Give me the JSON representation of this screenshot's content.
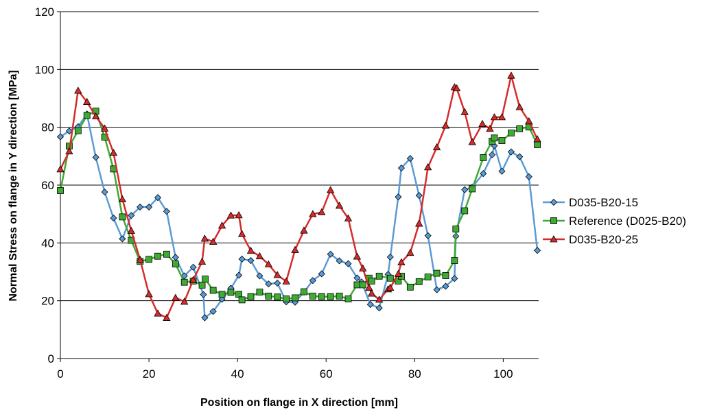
{
  "chart_data": {
    "type": "line",
    "title": "",
    "xlabel": "Position on flange in X direction [mm]",
    "ylabel": "Normal Stress on flange in Y direction [MPa]",
    "xlim": [
      0,
      108
    ],
    "ylim": [
      0,
      120
    ],
    "x_ticks": [
      0,
      20,
      40,
      60,
      80,
      100
    ],
    "y_ticks": [
      0,
      20,
      40,
      60,
      80,
      100,
      120
    ],
    "grid": "horizontal major",
    "legend_position": "right",
    "series": [
      {
        "name": "D035-B20-15",
        "color": "#5b9bd5",
        "marker": "diamond",
        "points": [
          [
            0,
            76.7
          ],
          [
            2,
            78.7
          ],
          [
            4,
            80.2
          ],
          [
            6,
            84.6
          ],
          [
            8,
            69.6
          ],
          [
            10,
            57.6
          ],
          [
            12,
            48.6
          ],
          [
            14,
            41.4
          ],
          [
            16,
            49.5
          ],
          [
            18,
            52.4
          ],
          [
            20,
            52.4
          ],
          [
            22,
            55.7
          ],
          [
            24,
            50.9
          ],
          [
            26,
            35
          ],
          [
            28,
            28.6
          ],
          [
            30,
            31.6
          ],
          [
            32.3,
            22.1
          ],
          [
            32.6,
            14.1
          ],
          [
            34.5,
            16.3
          ],
          [
            36.5,
            20.5
          ],
          [
            38.5,
            24.3
          ],
          [
            40.3,
            28.8
          ],
          [
            41,
            34.4
          ],
          [
            43,
            33.9
          ],
          [
            45,
            28.6
          ],
          [
            47,
            25.8
          ],
          [
            49,
            26.1
          ],
          [
            51,
            19.6
          ],
          [
            53,
            19.5
          ],
          [
            55,
            23
          ],
          [
            57,
            27
          ],
          [
            59,
            29.3
          ],
          [
            61,
            36.1
          ],
          [
            63,
            33.8
          ],
          [
            65,
            32.8
          ],
          [
            67,
            27.9
          ],
          [
            68,
            26.5
          ],
          [
            70,
            18.7
          ],
          [
            72,
            17.5
          ],
          [
            74,
            29.1
          ],
          [
            74.5,
            35.1
          ],
          [
            76.3,
            55.9
          ],
          [
            77,
            65.9
          ],
          [
            79,
            69.2
          ],
          [
            81,
            56.4
          ],
          [
            83,
            42.5
          ],
          [
            85,
            23.8
          ],
          [
            87,
            25
          ],
          [
            89,
            27.7
          ],
          [
            89.3,
            42.3
          ],
          [
            91.3,
            58.4
          ],
          [
            93,
            59.3
          ],
          [
            95.5,
            64
          ],
          [
            97.5,
            70.5
          ],
          [
            98,
            73.6
          ],
          [
            99.7,
            64.8
          ],
          [
            101.8,
            71.5
          ],
          [
            103.7,
            69.8
          ],
          [
            105.8,
            62.9
          ],
          [
            107.7,
            37.4
          ]
        ]
      },
      {
        "name": "Reference (D025-B20)",
        "color": "#3faa34",
        "marker": "square",
        "points": [
          [
            0,
            58.1
          ],
          [
            2,
            73.5
          ],
          [
            4,
            78.8
          ],
          [
            6,
            84.1
          ],
          [
            8,
            85.6
          ],
          [
            10,
            76.6
          ],
          [
            12,
            65.6
          ],
          [
            14,
            49
          ],
          [
            16,
            40.9
          ],
          [
            18,
            33.6
          ],
          [
            20,
            34.3
          ],
          [
            22,
            35.4
          ],
          [
            24,
            36.1
          ],
          [
            26,
            32.7
          ],
          [
            28,
            26.4
          ],
          [
            30,
            26.8
          ],
          [
            32,
            25.4
          ],
          [
            32.7,
            27.5
          ],
          [
            34.5,
            23.6
          ],
          [
            36.5,
            22.2
          ],
          [
            38.5,
            22.9
          ],
          [
            40.3,
            22.2
          ],
          [
            41,
            20.3
          ],
          [
            43,
            21.4
          ],
          [
            45,
            23
          ],
          [
            47,
            21.6
          ],
          [
            49,
            21.3
          ],
          [
            51,
            20.6
          ],
          [
            53,
            21
          ],
          [
            55,
            23.1
          ],
          [
            57,
            21.6
          ],
          [
            59,
            21.4
          ],
          [
            61,
            21.4
          ],
          [
            63,
            21.6
          ],
          [
            65,
            20.6
          ],
          [
            67,
            25.5
          ],
          [
            68.3,
            25.5
          ],
          [
            69.7,
            27.8
          ],
          [
            70.3,
            26.8
          ],
          [
            72,
            28.5
          ],
          [
            74.5,
            27.8
          ],
          [
            76.3,
            26.8
          ],
          [
            77,
            28.5
          ],
          [
            79,
            24.7
          ],
          [
            81,
            26.6
          ],
          [
            83,
            28.2
          ],
          [
            85,
            29.5
          ],
          [
            87,
            28.7
          ],
          [
            89,
            33.9
          ],
          [
            89.3,
            44.8
          ],
          [
            91.3,
            51.1
          ],
          [
            93,
            58.7
          ],
          [
            95.5,
            69.5
          ],
          [
            97.5,
            75.2
          ],
          [
            98,
            76.3
          ],
          [
            99.7,
            75.4
          ],
          [
            101.8,
            78
          ],
          [
            103.7,
            79.5
          ],
          [
            105.8,
            80.1
          ],
          [
            107.7,
            74
          ]
        ]
      },
      {
        "name": "D035-B20-25",
        "color": "#d62b2b",
        "marker": "triangle",
        "points": [
          [
            0,
            65.5
          ],
          [
            2,
            71.7
          ],
          [
            4,
            92.7
          ],
          [
            6,
            88.8
          ],
          [
            8,
            83.8
          ],
          [
            10,
            79.6
          ],
          [
            12,
            71.2
          ],
          [
            14,
            55.1
          ],
          [
            16,
            44.2
          ],
          [
            18,
            34.2
          ],
          [
            20,
            22.3
          ],
          [
            22,
            15.6
          ],
          [
            24,
            14.1
          ],
          [
            26,
            21
          ],
          [
            28,
            19.7
          ],
          [
            30,
            27.2
          ],
          [
            32,
            33.5
          ],
          [
            32.6,
            41.5
          ],
          [
            34.5,
            40.4
          ],
          [
            36.5,
            46
          ],
          [
            38.5,
            49.5
          ],
          [
            40.3,
            49.6
          ],
          [
            41,
            43.1
          ],
          [
            43,
            37.3
          ],
          [
            45,
            35.4
          ],
          [
            47,
            32.6
          ],
          [
            49,
            28.9
          ],
          [
            51,
            26.7
          ],
          [
            53,
            37.6
          ],
          [
            55,
            44.3
          ],
          [
            57,
            50
          ],
          [
            59,
            50.6
          ],
          [
            61,
            58.3
          ],
          [
            63,
            52.9
          ],
          [
            65,
            48.5
          ],
          [
            67,
            35.3
          ],
          [
            68.3,
            31.2
          ],
          [
            69.7,
            24.5
          ],
          [
            70.3,
            22.5
          ],
          [
            72,
            20.4
          ],
          [
            74,
            24
          ],
          [
            74.5,
            24.5
          ],
          [
            76.3,
            29.3
          ],
          [
            77,
            33.3
          ],
          [
            79,
            36.6
          ],
          [
            81,
            46.7
          ],
          [
            83,
            66.2
          ],
          [
            85,
            73.1
          ],
          [
            87,
            80.6
          ],
          [
            89,
            93.9
          ],
          [
            89.5,
            93.5
          ],
          [
            91.3,
            85.3
          ],
          [
            93,
            74.9
          ],
          [
            95.3,
            81.2
          ],
          [
            97,
            79.5
          ],
          [
            98,
            83.5
          ],
          [
            99.7,
            83.5
          ],
          [
            101.8,
            97.9
          ],
          [
            103.7,
            87
          ],
          [
            105.8,
            82.1
          ],
          [
            107.7,
            75.9
          ]
        ]
      }
    ]
  }
}
